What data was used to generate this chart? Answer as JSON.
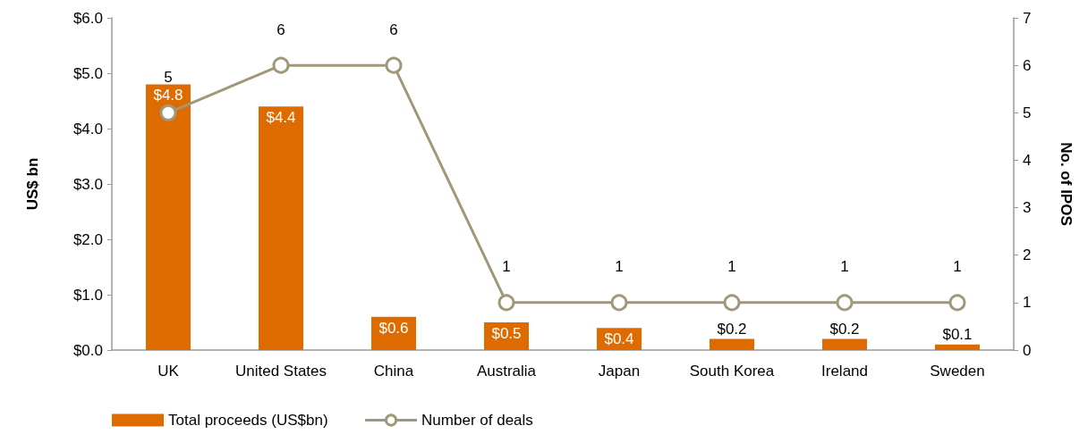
{
  "chart_data": {
    "type": "bar",
    "categories": [
      "UK",
      "United States",
      "China",
      "Australia",
      "Japan",
      "South Korea",
      "Ireland",
      "Sweden"
    ],
    "series": [
      {
        "name": "Total proceeds (US$bn)",
        "color": "#dd6b00",
        "values": [
          4.8,
          4.4,
          0.6,
          0.5,
          0.4,
          0.2,
          0.2,
          0.1
        ],
        "value_labels": [
          "$4.8",
          "$4.4",
          "$0.6",
          "$0.5",
          "$0.4",
          "$0.2",
          "$0.2",
          "$0.1"
        ]
      },
      {
        "name": "Number of deals",
        "type": "line",
        "axis": "y2",
        "color": "#a09878",
        "marker": "circle",
        "values": [
          5,
          6,
          6,
          1,
          1,
          1,
          1,
          1
        ],
        "value_labels": [
          "5",
          "6",
          "6",
          "1",
          "1",
          "1",
          "1",
          "1"
        ]
      }
    ],
    "ylabel": "US$ bn",
    "y2label": "No. of IPOS",
    "ylim": [
      0,
      6
    ],
    "yticks": [
      {
        "value": 0,
        "label": "$0.0"
      },
      {
        "value": 1,
        "label": "$1.0"
      },
      {
        "value": 2,
        "label": "$2.0"
      },
      {
        "value": 3,
        "label": "$3.0"
      },
      {
        "value": 4,
        "label": "$4.0"
      },
      {
        "value": 5,
        "label": "$5.0"
      },
      {
        "value": 6,
        "label": "$6.0"
      }
    ],
    "y2lim": [
      0,
      7
    ],
    "y2ticks": [
      0,
      1,
      2,
      3,
      4,
      5,
      6,
      7
    ],
    "grid": false,
    "legend": "bottom left"
  }
}
